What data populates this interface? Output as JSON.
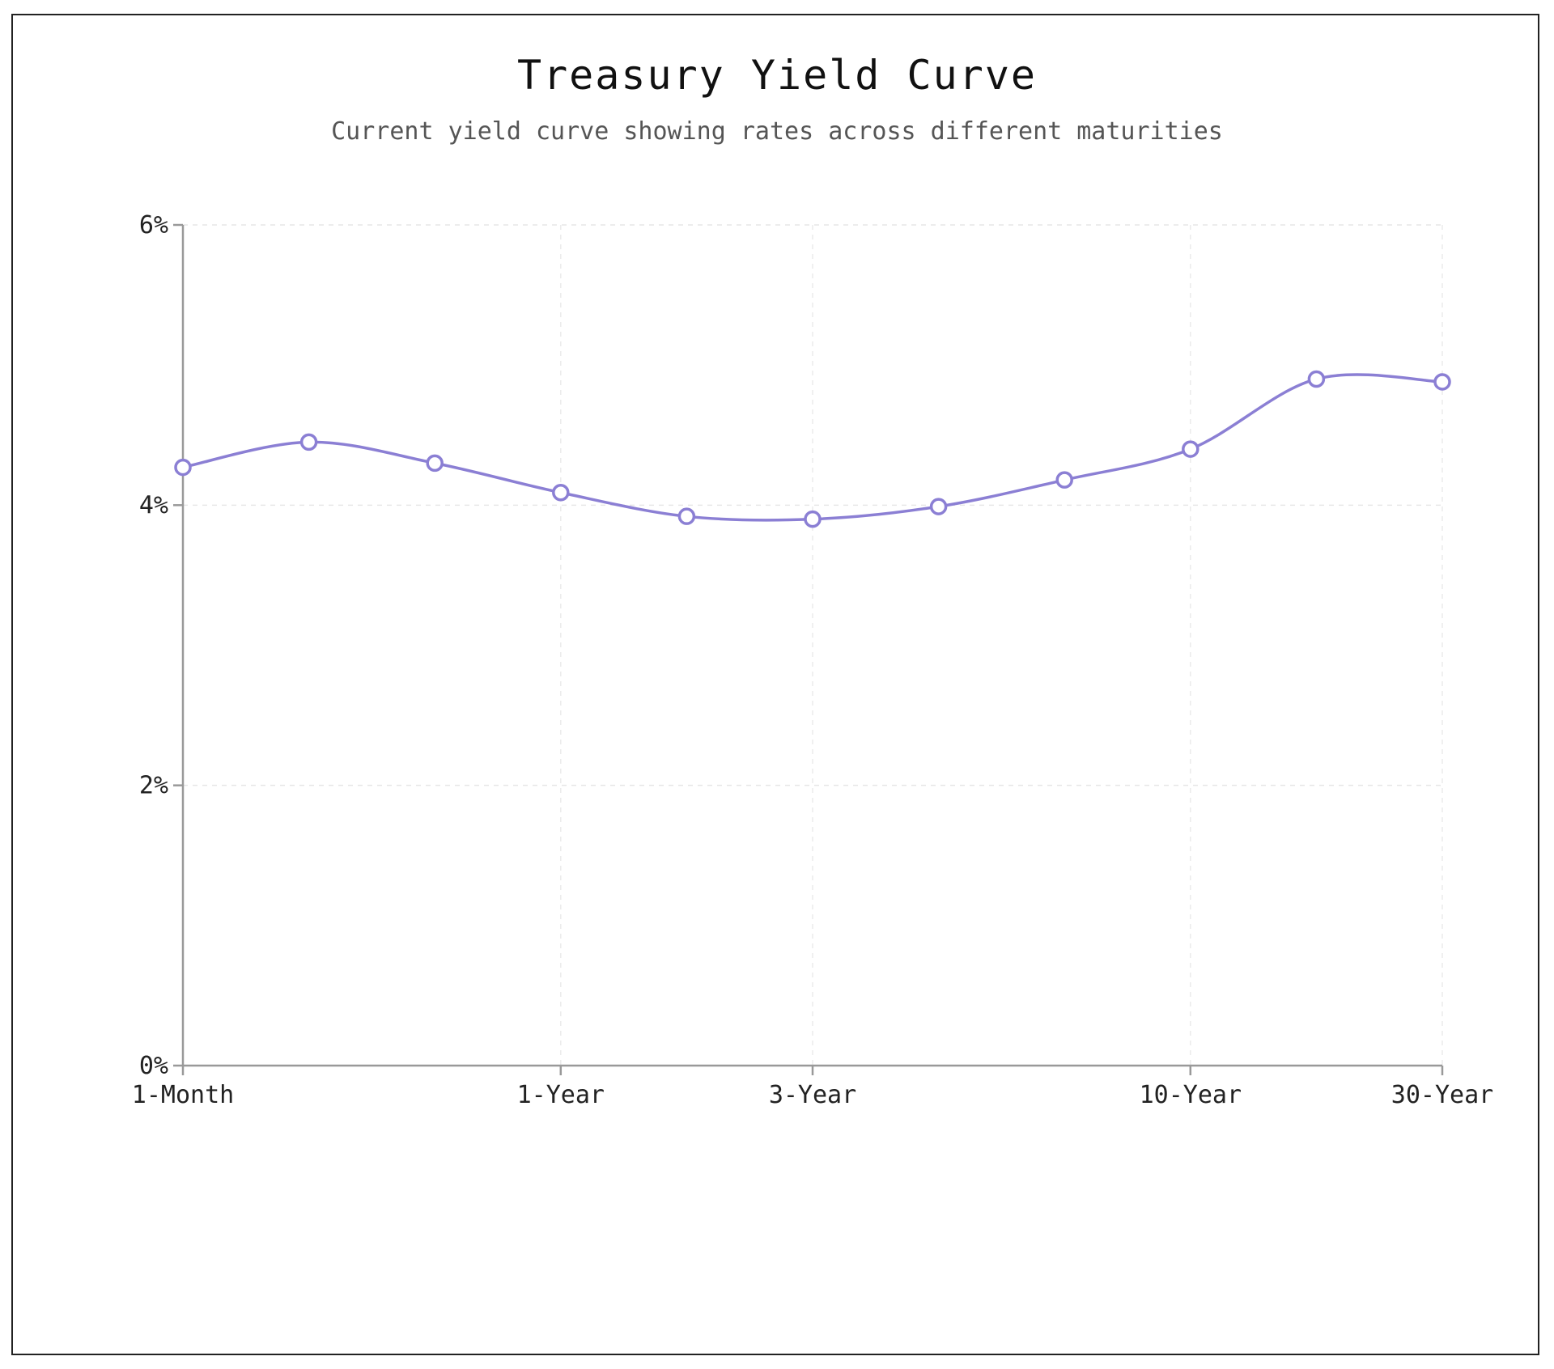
{
  "chart_data": {
    "type": "line",
    "title": "Treasury Yield Curve",
    "subtitle": "Current yield curve showing rates across different maturities",
    "xlabel": "",
    "ylabel": "",
    "x_tick_labels": [
      "1-Month",
      "",
      "",
      "1-Year",
      "",
      "3-Year",
      "",
      "",
      "10-Year",
      "",
      "30-Year"
    ],
    "series": [
      {
        "values": [
          4.27,
          4.45,
          4.3,
          4.09,
          3.92,
          3.9,
          3.99,
          4.18,
          4.4,
          4.9,
          4.88
        ]
      }
    ],
    "ylim": [
      0,
      6
    ],
    "y_ticks": [
      0,
      2,
      4,
      6
    ],
    "y_tick_labels": [
      "0%",
      "2%",
      "4%",
      "6%"
    ],
    "grid": true,
    "line_color": "#8b7fd4",
    "marker_fill": "#ffffff"
  }
}
